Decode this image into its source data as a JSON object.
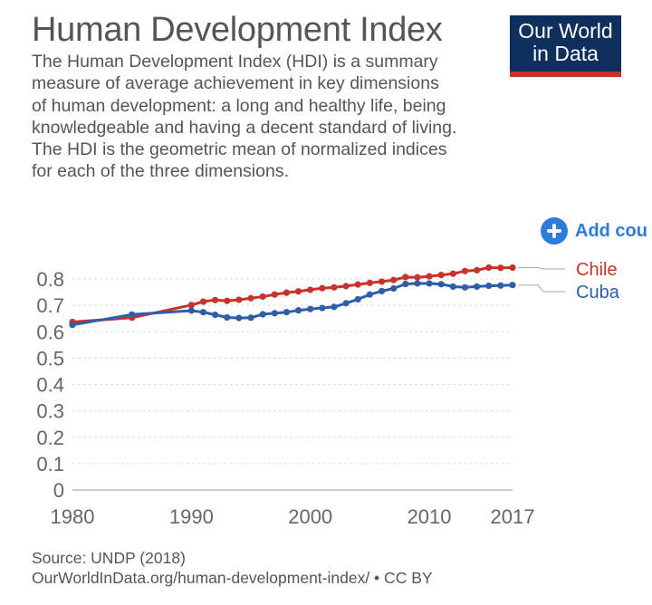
{
  "header": {
    "title": "Human Development Index",
    "subtitle": "The Human Development Index (HDI) is a summary measure of average achievement in key dimensions of human development: a long and healthy life, being knowledgeable and having a decent standard of living. The HDI is the geometric mean of normalized indices for each of the three dimensions.",
    "logo_line1": "Our World",
    "logo_line2": "in Data"
  },
  "controls": {
    "add_country_label": "Add cou"
  },
  "footer": {
    "source": "Source: UNDP (2018)",
    "link_line": "OurWorldInData.org/human-development-index/ • CC BY"
  },
  "colors": {
    "chile": "#c8322b",
    "cuba": "#2f5ea8",
    "accent": "#2e7bde",
    "brand": "#0f2f5c"
  },
  "chart_data": {
    "type": "line",
    "title": "Human Development Index",
    "xlabel": "",
    "ylabel": "",
    "xlim": [
      1980,
      2017
    ],
    "ylim": [
      0,
      0.8
    ],
    "x_ticks": [
      "1980",
      "1990",
      "2000",
      "2010",
      "2017"
    ],
    "y_ticks": [
      "0",
      "0.1",
      "0.2",
      "0.3",
      "0.4",
      "0.5",
      "0.6",
      "0.7",
      "0.8"
    ],
    "grid": true,
    "legend": "right end of lines",
    "series": [
      {
        "name": "Chile",
        "color": "#c8322b",
        "x": [
          1980,
          1985,
          1990,
          1991,
          1992,
          1993,
          1994,
          1995,
          1996,
          1997,
          1998,
          1999,
          2000,
          2001,
          2002,
          2003,
          2004,
          2005,
          2006,
          2007,
          2008,
          2009,
          2010,
          2011,
          2012,
          2013,
          2014,
          2015,
          2016,
          2017
        ],
        "values": [
          0.637,
          0.653,
          0.701,
          0.714,
          0.72,
          0.717,
          0.721,
          0.727,
          0.733,
          0.741,
          0.748,
          0.753,
          0.759,
          0.765,
          0.768,
          0.773,
          0.779,
          0.785,
          0.79,
          0.796,
          0.807,
          0.806,
          0.81,
          0.815,
          0.82,
          0.83,
          0.833,
          0.843,
          0.842,
          0.843
        ]
      },
      {
        "name": "Cuba",
        "color": "#2f5ea8",
        "x": [
          1980,
          1985,
          1990,
          1991,
          1992,
          1993,
          1994,
          1995,
          1996,
          1997,
          1998,
          1999,
          2000,
          2001,
          2002,
          2003,
          2004,
          2005,
          2006,
          2007,
          2008,
          2009,
          2010,
          2011,
          2012,
          2013,
          2014,
          2015,
          2016,
          2017
        ],
        "values": [
          0.626,
          0.665,
          0.68,
          0.674,
          0.664,
          0.654,
          0.652,
          0.653,
          0.666,
          0.67,
          0.674,
          0.681,
          0.686,
          0.69,
          0.694,
          0.708,
          0.723,
          0.741,
          0.754,
          0.764,
          0.781,
          0.783,
          0.783,
          0.78,
          0.771,
          0.768,
          0.771,
          0.774,
          0.775,
          0.777
        ]
      }
    ]
  }
}
